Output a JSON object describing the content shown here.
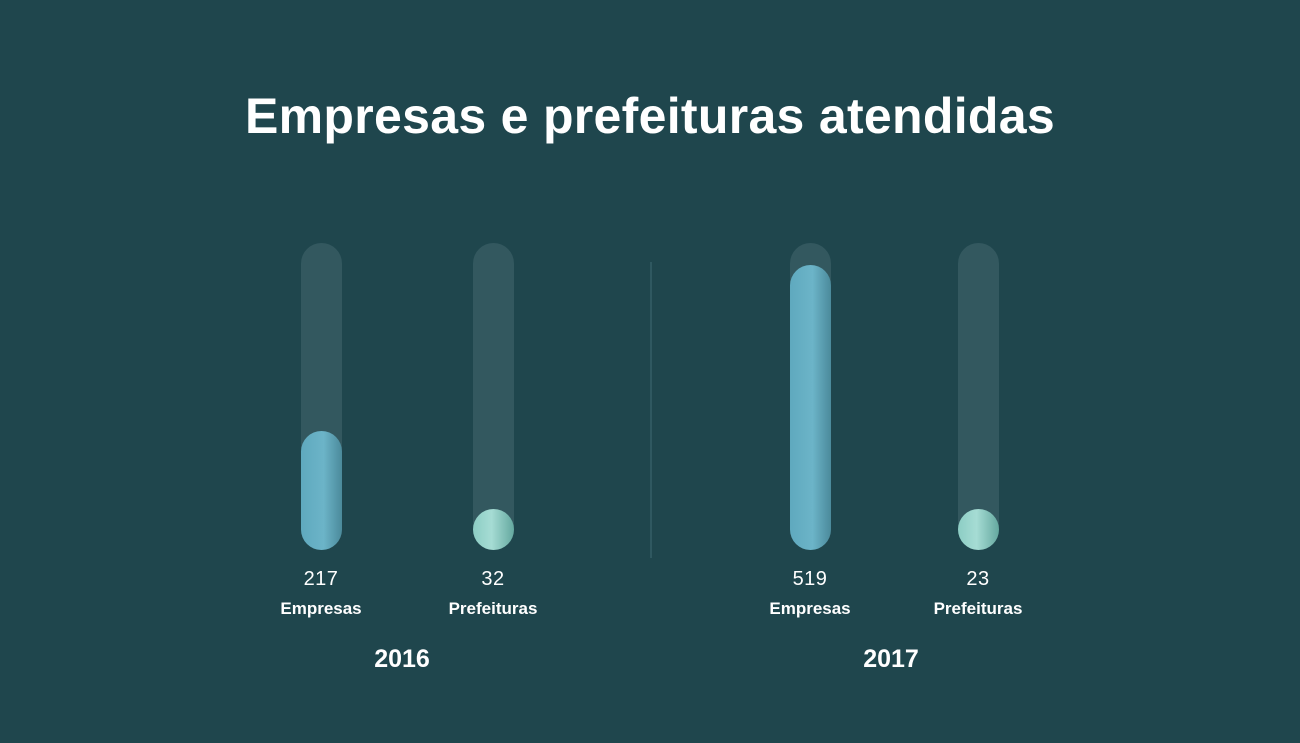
{
  "title": "Empresas e prefeituras atendidas",
  "colors": {
    "background": "#1f464d",
    "track": "#33585f",
    "empresas": "#6cb4c8",
    "prefeituras": "#a6dcd4"
  },
  "chart_data": {
    "type": "bar",
    "title": "Empresas e prefeituras atendidas",
    "groups": [
      {
        "year": "2016",
        "bars": [
          {
            "category": "Empresas",
            "value": 217,
            "value_label": "217"
          },
          {
            "category": "Prefeituras",
            "value": 32,
            "value_label": "32"
          }
        ]
      },
      {
        "year": "2017",
        "bars": [
          {
            "category": "Empresas",
            "value": 519,
            "value_label": "519"
          },
          {
            "category": "Prefeituras",
            "value": 23,
            "value_label": "23"
          }
        ]
      }
    ],
    "ylim": [
      0,
      560
    ],
    "grid": false
  }
}
